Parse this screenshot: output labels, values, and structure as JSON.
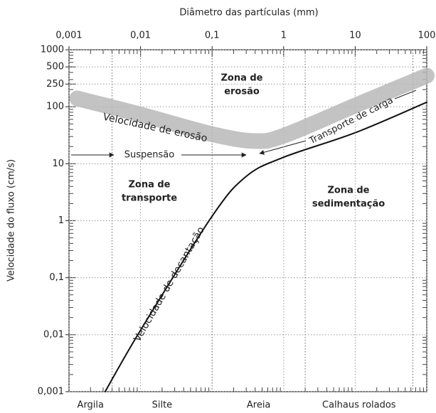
{
  "chart_data": {
    "type": "line",
    "title": "Diâmetro das partículas (mm)",
    "y_label": "Velocidade do fluxo (cm/s)",
    "xscale": "log",
    "yscale": "log",
    "grid": true,
    "xlim": [
      0.001,
      100
    ],
    "xticks": [
      {
        "value": 0.001,
        "label": "0,001"
      },
      {
        "value": 0.01,
        "label": "0,01"
      },
      {
        "value": 0.1,
        "label": "0,1"
      },
      1,
      10,
      100
    ],
    "ylim": [
      0.001,
      1000
    ],
    "yticks": [
      {
        "value": 0.001,
        "label": "0,001"
      },
      {
        "value": 0.01,
        "label": "0,01"
      },
      {
        "value": 0.1,
        "label": "0,1"
      },
      1,
      10,
      100,
      250,
      500,
      1000
    ],
    "series": [
      {
        "name": "Velocidade de erosão",
        "color": "#b8b8b8",
        "x": [
          0.0013,
          0.01,
          0.1,
          0.4,
          1,
          10,
          100
        ],
        "values": [
          140,
          73,
          33,
          25,
          31,
          105,
          350
        ]
      },
      {
        "name": "Velocidade de decantação",
        "color": "#111111",
        "x": [
          0.0032,
          0.01,
          0.1,
          0.3,
          1,
          10,
          100
        ],
        "values": [
          0.001,
          0.012,
          1.2,
          6,
          13,
          35,
          120
        ]
      }
    ],
    "size_classes": [
      {
        "name": "Argila",
        "range": [
          0.001,
          0.004
        ]
      },
      {
        "name": "Silte",
        "range": [
          0.004,
          0.1
        ]
      },
      {
        "name": "Areia",
        "range": [
          0.1,
          2
        ]
      },
      {
        "name": "Calhaus rolados",
        "range": [
          2,
          64
        ]
      }
    ],
    "zones": [
      {
        "lines": [
          "Zona de",
          "erosão"
        ]
      },
      {
        "lines": [
          "Zona de",
          "transporte"
        ]
      },
      {
        "lines": [
          "Zona de",
          "sedimentação"
        ]
      }
    ],
    "annotations": [
      "Suspensão",
      "Transporte de carga"
    ]
  }
}
